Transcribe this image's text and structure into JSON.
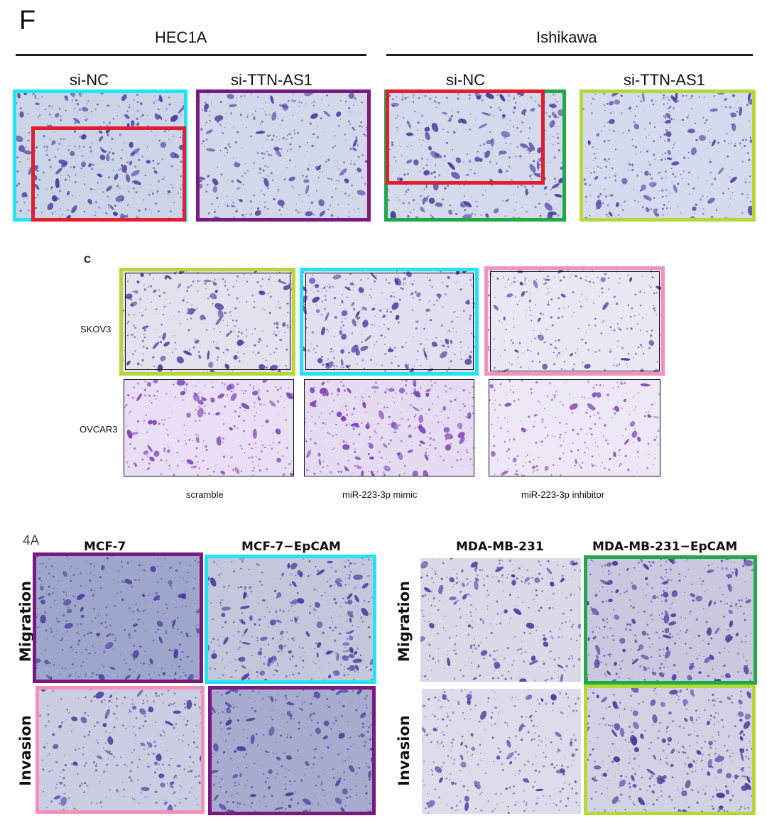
{
  "panel_f": {
    "letter": "F",
    "groups": [
      "HEC1A",
      "Ishikawa"
    ],
    "columns": [
      "si-NC",
      "si-TTN-AS1",
      "si-NC",
      "si-TTN-AS1"
    ]
  },
  "panel_c": {
    "letter": "C",
    "rows": [
      "SKOV3",
      "OVCAR3"
    ],
    "columns": [
      "scramble",
      "miR-223-3p mimic",
      "miR-223-3p inhibitor"
    ]
  },
  "panel_4a": {
    "letter": "4A",
    "columns": [
      "MCF-7",
      "MCF-7−EpCAM",
      "MDA-MB-231",
      "MDA-MB-231−EpCAM"
    ],
    "rows_left": [
      "Migration",
      "Invasion"
    ],
    "rows_right": [
      "Migration",
      "Invasion"
    ]
  },
  "colors": {
    "cyan": "#22e4f2",
    "red": "#e02030",
    "purple": "#7a1a80",
    "green": "#22a84a",
    "lime": "#b4d83a",
    "pink": "#f291bd",
    "cell_stain": "#4a3a9e"
  }
}
